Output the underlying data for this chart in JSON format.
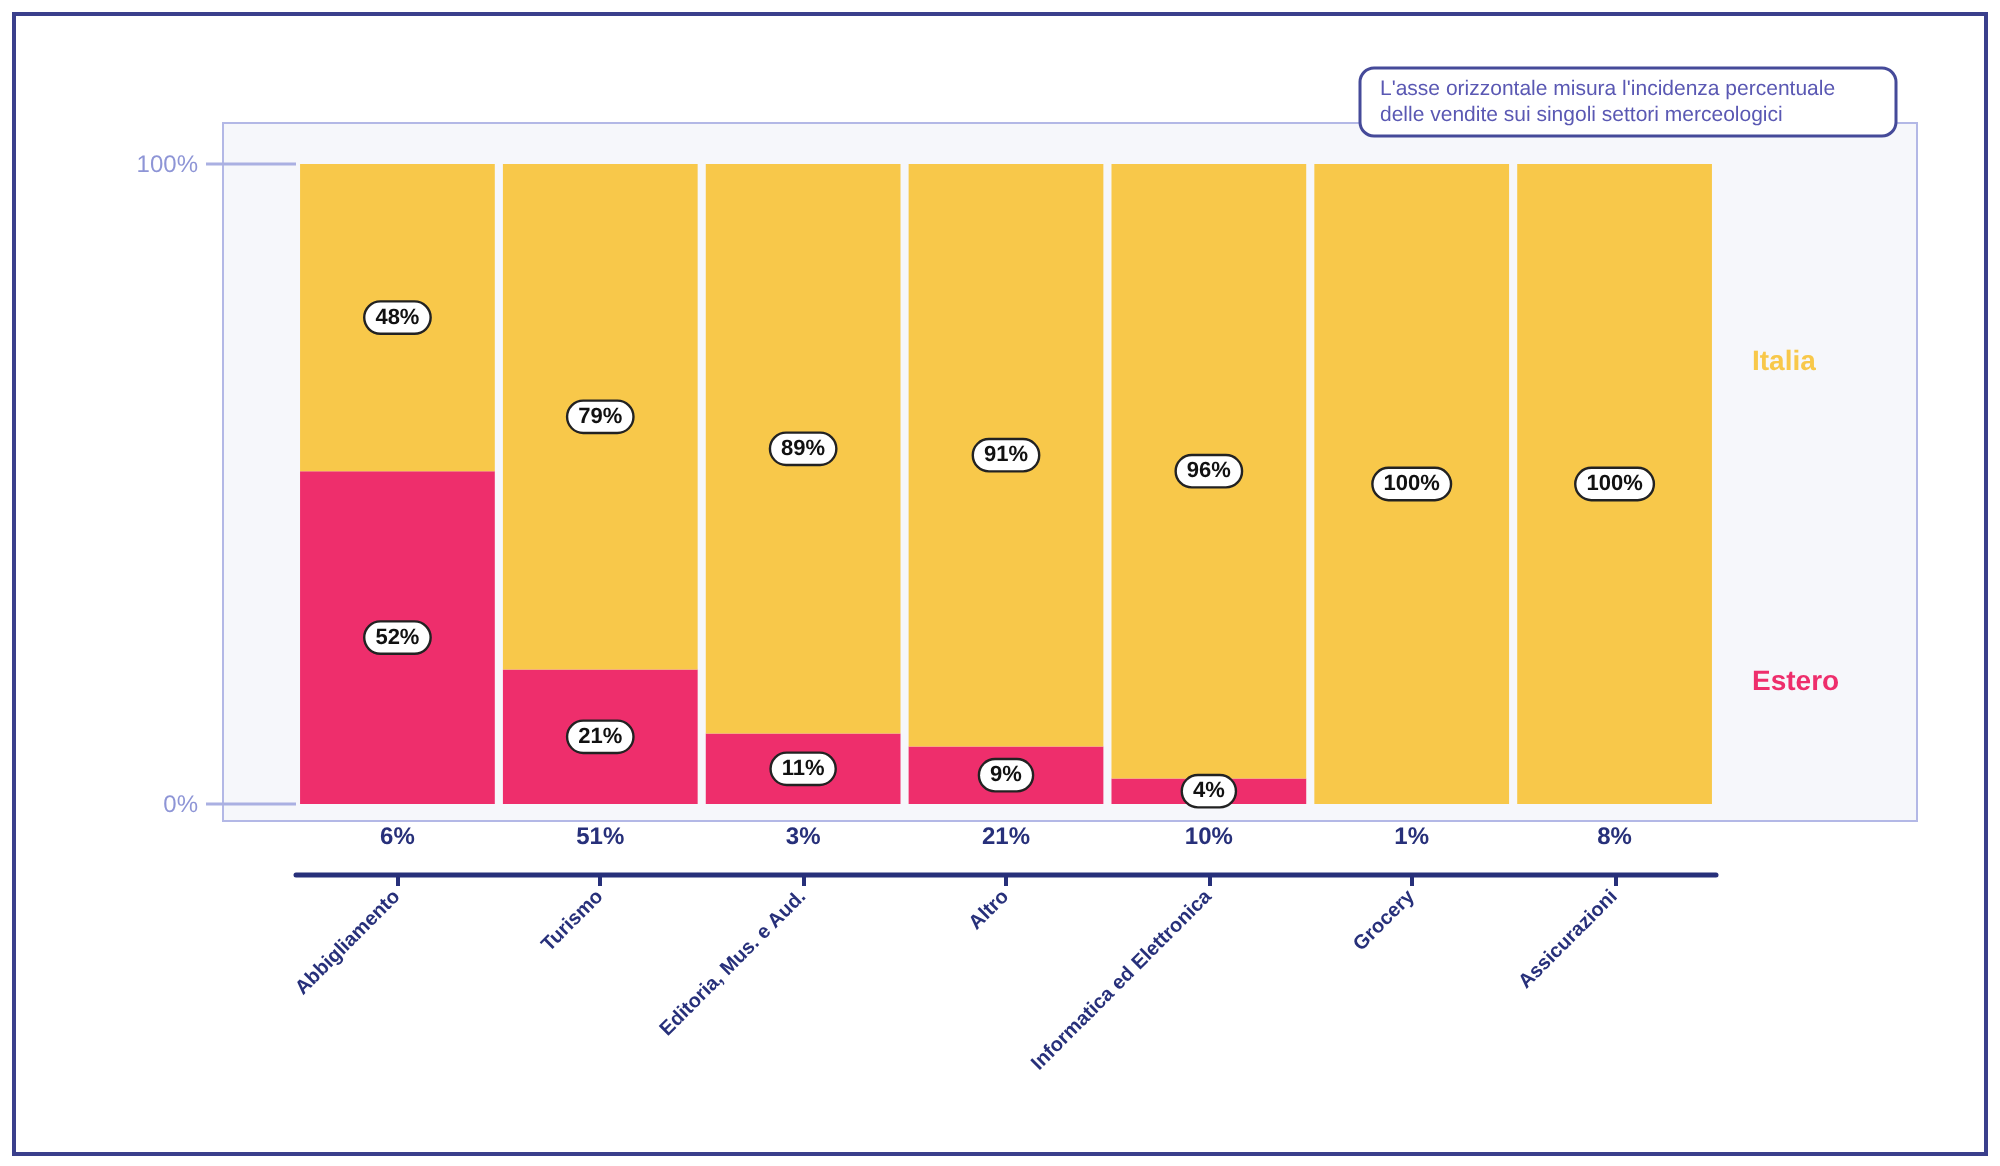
{
  "chart_data": {
    "type": "bar",
    "stacked": true,
    "categories": [
      "Abbigliamento",
      "Turismo",
      "Editoria, Mus. e Aud.",
      "Altro",
      "Informatica ed Elettronica",
      "Grocery",
      "Assicurazioni"
    ],
    "series": [
      {
        "name": "Estero",
        "color": "#ee2e6c",
        "values": [
          52,
          21,
          11,
          9,
          4,
          0,
          0
        ],
        "value_labels": [
          "52%",
          "21%",
          "11%",
          "9%",
          "4%",
          null,
          null
        ]
      },
      {
        "name": "Italia",
        "color": "#f8c84a",
        "values": [
          48,
          79,
          89,
          91,
          96,
          100,
          100
        ],
        "value_labels": [
          "48%",
          "79%",
          "89%",
          "91%",
          "96%",
          "100%",
          "100%"
        ]
      }
    ],
    "ylim": [
      0,
      100
    ],
    "yticks": [
      {
        "value": 0,
        "label": "0%"
      },
      {
        "value": 100,
        "label": "100%"
      }
    ],
    "annotations": [
      "L'asse orizzontale misura l'incidenza percentuale delle vendite sui singoli settori merceologici",
      "6%",
      "51%",
      "3%",
      "21%",
      "10%",
      "1%",
      "8%"
    ]
  }
}
